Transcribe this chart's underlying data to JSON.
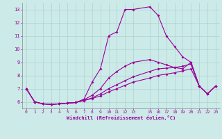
{
  "xlabel": "Windchill (Refroidissement éolien,°C)",
  "bg_color": "#cceae8",
  "line_color": "#990099",
  "grid_color": "#aad4d0",
  "xlim": [
    -0.5,
    23.5
  ],
  "ylim": [
    5.5,
    13.5
  ],
  "xticks": [
    0,
    1,
    2,
    3,
    4,
    5,
    6,
    7,
    8,
    9,
    10,
    11,
    12,
    13,
    15,
    16,
    17,
    18,
    19,
    20,
    21,
    22,
    23
  ],
  "yticks": [
    6,
    7,
    8,
    9,
    10,
    11,
    12,
    13
  ],
  "lines": [
    [
      0,
      1,
      2,
      3,
      4,
      5,
      6,
      7,
      8,
      9,
      10,
      11,
      12,
      13,
      15,
      16,
      17,
      18,
      19,
      20,
      21,
      22,
      23
    ],
    [
      7.0,
      6.0,
      5.85,
      5.8,
      5.85,
      5.9,
      5.95,
      6.2,
      7.5,
      8.5,
      11.0,
      11.3,
      13.0,
      13.0,
      13.2,
      12.55,
      11.0,
      10.2,
      9.4,
      9.0,
      7.2,
      6.6,
      7.2
    ],
    [
      0,
      1,
      2,
      3,
      4,
      5,
      6,
      7,
      8,
      9,
      10,
      11,
      12,
      13,
      15,
      16,
      17,
      18,
      19,
      20,
      21,
      22,
      23
    ],
    [
      7.0,
      6.0,
      5.85,
      5.8,
      5.85,
      5.9,
      5.95,
      6.15,
      6.5,
      7.0,
      7.8,
      8.3,
      8.7,
      9.0,
      9.2,
      9.0,
      8.8,
      8.6,
      8.5,
      9.0,
      7.2,
      6.6,
      7.2
    ],
    [
      0,
      1,
      2,
      3,
      4,
      5,
      6,
      7,
      8,
      9,
      10,
      11,
      12,
      13,
      15,
      16,
      17,
      18,
      19,
      20,
      21,
      22,
      23
    ],
    [
      7.0,
      6.0,
      5.85,
      5.8,
      5.85,
      5.9,
      5.95,
      6.1,
      6.3,
      6.6,
      7.0,
      7.3,
      7.6,
      7.9,
      8.3,
      8.5,
      8.55,
      8.6,
      8.7,
      8.85,
      7.2,
      6.6,
      7.2
    ],
    [
      0,
      1,
      2,
      3,
      4,
      5,
      6,
      7,
      8,
      9,
      10,
      11,
      12,
      13,
      15,
      16,
      17,
      18,
      19,
      20,
      21,
      22,
      23
    ],
    [
      7.0,
      6.0,
      5.85,
      5.8,
      5.85,
      5.9,
      5.95,
      6.1,
      6.25,
      6.45,
      6.75,
      7.0,
      7.25,
      7.5,
      7.8,
      8.0,
      8.1,
      8.2,
      8.35,
      8.5,
      7.2,
      6.6,
      7.2
    ]
  ]
}
